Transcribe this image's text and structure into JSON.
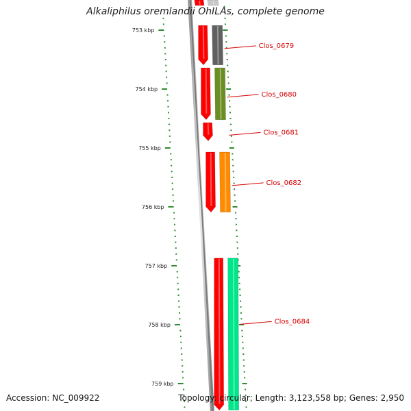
{
  "title": "Alkaliphilus oremlandii OhILAs, complete genome",
  "ticks": [
    {
      "label": "753 kbp",
      "bp": 753000
    },
    {
      "label": "754 kbp",
      "bp": 754000
    },
    {
      "label": "755 kbp",
      "bp": 755000
    },
    {
      "label": "756 kbp",
      "bp": 756000
    },
    {
      "label": "757 kbp",
      "bp": 757000
    },
    {
      "label": "758 kbp",
      "bp": 758000
    },
    {
      "label": "759 kbp",
      "bp": 759000
    }
  ],
  "genes": [
    {
      "label": "Clos_0679",
      "color": "#606060",
      "start": 752920,
      "end": 753590
    },
    {
      "label": "Clos_0680",
      "color": "#6b8e23",
      "start": 753640,
      "end": 754520
    },
    {
      "label": "Clos_0681",
      "color": "#ff0000",
      "start": 754570,
      "end": 754880
    },
    {
      "label": "Clos_0682",
      "color": "#ff8c00",
      "start": 755070,
      "end": 756090
    },
    {
      "label": "Clos_0684",
      "color": "#00e68a",
      "start": 756870,
      "end": 759450
    }
  ],
  "cds_track_color": "#ff0000",
  "tick_color": "#2e8b2e",
  "footer": {
    "accession": "Accession: NC_009922",
    "summary": "Topology: circular; Length: 3,123,558 bp; Genes: 2,950"
  }
}
